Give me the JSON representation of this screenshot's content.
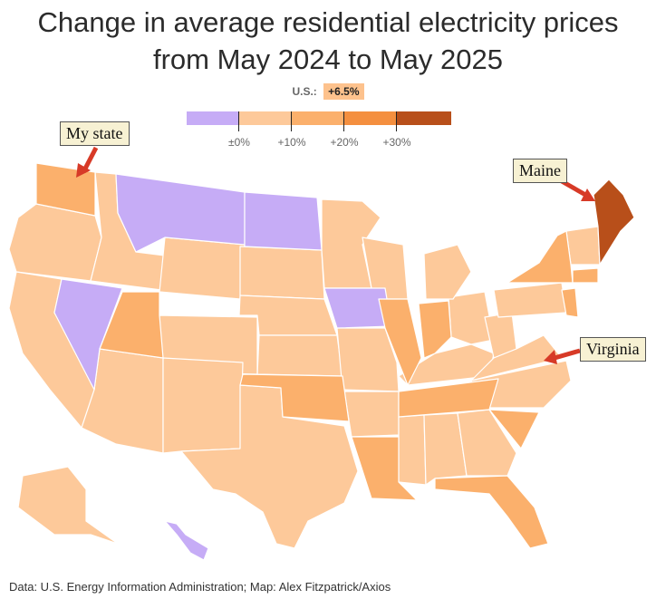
{
  "title_line1": "Change in average residential electricity prices",
  "title_line2": "from May 2024 to May 2025",
  "us_label": "U.S.:",
  "us_value": "+6.5%",
  "legend": {
    "bins": [
      {
        "color": "#c6acf6"
      },
      {
        "color": "#fdc99a"
      },
      {
        "color": "#fbb06c"
      },
      {
        "color": "#f48f3f"
      },
      {
        "color": "#b84f1a"
      }
    ],
    "ticks": [
      "±0%",
      "+10%",
      "+20%",
      "+30%"
    ]
  },
  "colors": {
    "decrease": "#c6acf6",
    "light": "#fdc99a",
    "medium": "#fbb06c",
    "strong": "#f48f3f",
    "darkest": "#b84f1a",
    "arrow": "#d73a27"
  },
  "callouts": {
    "my_state": "My state",
    "maine": "Maine",
    "virginia": "Virginia"
  },
  "credit": "Data: U.S. Energy Information Administration; Map: Alex Fitzpatrick/Axios"
}
